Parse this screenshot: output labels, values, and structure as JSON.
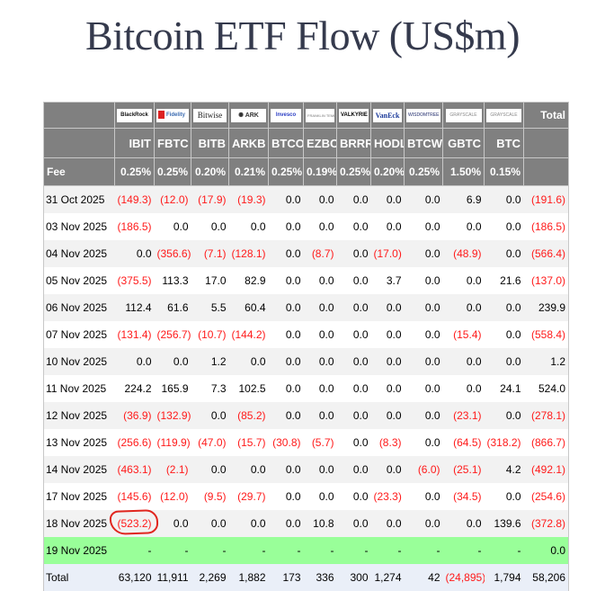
{
  "title": "Bitcoin ETF Flow (US$m)",
  "columns": [
    {
      "ticker": "IBIT",
      "issuer": "BlackRock",
      "logo_text": "BlackRock",
      "fee": "0.25%",
      "total": "63,120",
      "total_negative": false
    },
    {
      "ticker": "FBTC",
      "issuer": "Fidelity",
      "logo_text": "Fidelity",
      "fee": "0.25%",
      "total": "11,911",
      "total_negative": false
    },
    {
      "ticker": "BITB",
      "issuer": "Bitwise",
      "logo_text": "Bitwise",
      "fee": "0.20%",
      "total": "2,269",
      "total_negative": false
    },
    {
      "ticker": "ARKB",
      "issuer": "ARK Invest",
      "logo_text": "ARK",
      "fee": "0.21%",
      "total": "1,882",
      "total_negative": false
    },
    {
      "ticker": "BTCO",
      "issuer": "Invesco",
      "logo_text": "Invesco",
      "fee": "0.25%",
      "total": "173",
      "total_negative": false
    },
    {
      "ticker": "EZBC",
      "issuer": "Franklin Templeton",
      "logo_text": "FRANKLIN TEMPLETON",
      "fee": "0.19%",
      "total": "336",
      "total_negative": false
    },
    {
      "ticker": "BRRR",
      "issuer": "Valkyrie",
      "logo_text": "VALKYRIE",
      "fee": "0.25%",
      "total": "300",
      "total_negative": false
    },
    {
      "ticker": "HODL",
      "issuer": "VanEck",
      "logo_text": "VanEck",
      "fee": "0.20%",
      "total": "1,274",
      "total_negative": false
    },
    {
      "ticker": "BTCW",
      "issuer": "WisdomTree",
      "logo_text": "WISDOMTREE",
      "fee": "0.25%",
      "total": "42",
      "total_negative": false
    },
    {
      "ticker": "GBTC",
      "issuer": "Grayscale",
      "logo_text": "GRAYSCALE",
      "fee": "1.50%",
      "total": "(24,895)",
      "total_negative": true
    },
    {
      "ticker": "BTC",
      "issuer": "Grayscale",
      "logo_text": "GRAYSCALE",
      "fee": "0.15%",
      "total": "1,794",
      "total_negative": false
    }
  ],
  "header": {
    "total_label": "Total",
    "fee_label": "Fee"
  },
  "rows": [
    {
      "date": "31 Oct 2025",
      "values": [
        "(149.3)",
        "(12.0)",
        "(17.9)",
        "(19.3)",
        "0.0",
        "0.0",
        "0.0",
        "0.0",
        "0.0",
        "6.9",
        "0.0"
      ],
      "total": "(191.6)"
    },
    {
      "date": "03 Nov 2025",
      "values": [
        "(186.5)",
        "0.0",
        "0.0",
        "0.0",
        "0.0",
        "0.0",
        "0.0",
        "0.0",
        "0.0",
        "0.0",
        "0.0"
      ],
      "total": "(186.5)"
    },
    {
      "date": "04 Nov 2025",
      "values": [
        "0.0",
        "(356.6)",
        "(7.1)",
        "(128.1)",
        "0.0",
        "(8.7)",
        "0.0",
        "(17.0)",
        "0.0",
        "(48.9)",
        "0.0"
      ],
      "total": "(566.4)"
    },
    {
      "date": "05 Nov 2025",
      "values": [
        "(375.5)",
        "113.3",
        "17.0",
        "82.9",
        "0.0",
        "0.0",
        "0.0",
        "3.7",
        "0.0",
        "0.0",
        "21.6"
      ],
      "total": "(137.0)"
    },
    {
      "date": "06 Nov 2025",
      "values": [
        "112.4",
        "61.6",
        "5.5",
        "60.4",
        "0.0",
        "0.0",
        "0.0",
        "0.0",
        "0.0",
        "0.0",
        "0.0"
      ],
      "total": "239.9"
    },
    {
      "date": "07 Nov 2025",
      "values": [
        "(131.4)",
        "(256.7)",
        "(10.7)",
        "(144.2)",
        "0.0",
        "0.0",
        "0.0",
        "0.0",
        "0.0",
        "(15.4)",
        "0.0"
      ],
      "total": "(558.4)"
    },
    {
      "date": "10 Nov 2025",
      "values": [
        "0.0",
        "0.0",
        "1.2",
        "0.0",
        "0.0",
        "0.0",
        "0.0",
        "0.0",
        "0.0",
        "0.0",
        "0.0"
      ],
      "total": "1.2"
    },
    {
      "date": "11 Nov 2025",
      "values": [
        "224.2",
        "165.9",
        "7.3",
        "102.5",
        "0.0",
        "0.0",
        "0.0",
        "0.0",
        "0.0",
        "0.0",
        "24.1"
      ],
      "total": "524.0"
    },
    {
      "date": "12 Nov 2025",
      "values": [
        "(36.9)",
        "(132.9)",
        "0.0",
        "(85.2)",
        "0.0",
        "0.0",
        "0.0",
        "0.0",
        "0.0",
        "(23.1)",
        "0.0"
      ],
      "total": "(278.1)"
    },
    {
      "date": "13 Nov 2025",
      "values": [
        "(256.6)",
        "(119.9)",
        "(47.0)",
        "(15.7)",
        "(30.8)",
        "(5.7)",
        "0.0",
        "(8.3)",
        "0.0",
        "(64.5)",
        "(318.2)"
      ],
      "total": "(866.7)"
    },
    {
      "date": "14 Nov 2025",
      "values": [
        "(463.1)",
        "(2.1)",
        "0.0",
        "0.0",
        "0.0",
        "0.0",
        "0.0",
        "0.0",
        "(6.0)",
        "(25.1)",
        "4.2"
      ],
      "total": "(492.1)"
    },
    {
      "date": "17 Nov 2025",
      "values": [
        "(145.6)",
        "(12.0)",
        "(9.5)",
        "(29.7)",
        "0.0",
        "0.0",
        "0.0",
        "(23.3)",
        "0.0",
        "(34.5)",
        "0.0"
      ],
      "total": "(254.6)"
    },
    {
      "date": "18 Nov 2025",
      "values": [
        "(523.2)",
        "0.0",
        "0.0",
        "0.0",
        "0.0",
        "10.8",
        "0.0",
        "0.0",
        "0.0",
        "0.0",
        "139.6"
      ],
      "total": "(372.8)",
      "highlighted_cell": "IBIT"
    },
    {
      "date": "19 Nov 2025",
      "values": [
        "-",
        "-",
        "-",
        "-",
        "-",
        "-",
        "-",
        "-",
        "-",
        "-",
        "-"
      ],
      "total": "0.0",
      "pending": true
    }
  ],
  "totals_row": {
    "label": "Total",
    "grand_total": "58,206"
  },
  "colors": {
    "header_bg": "#808080",
    "row_alt_bg": "#f2f2f2",
    "pending_row_bg": "#99ff99",
    "total_row_bg": "#eaeff8",
    "negative_text": "#ff1a1a",
    "annotation_circle": "#e0261f",
    "title_text": "#353a4d"
  }
}
